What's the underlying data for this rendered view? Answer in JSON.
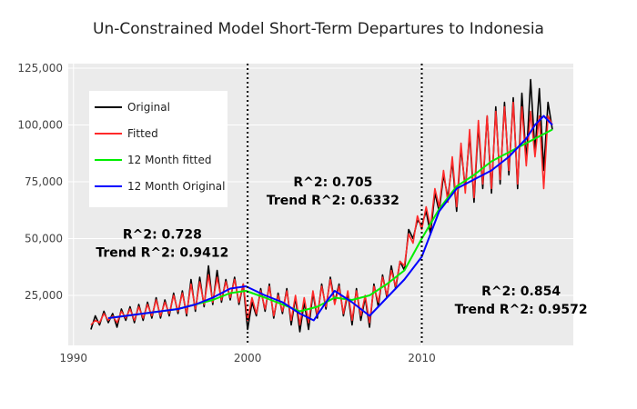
{
  "chart_data": {
    "type": "line",
    "title": "Un-Constrained Model Short-Term Departures to Indonesia",
    "xlabel": "",
    "ylabel": "",
    "xlim": [
      1989.7,
      2018.7
    ],
    "ylim": [
      3000,
      127000
    ],
    "x_ticks": [
      1990,
      2000,
      2010
    ],
    "x_tick_labels": [
      "1990",
      "2000",
      "2010"
    ],
    "y_ticks": [
      25000,
      50000,
      75000,
      100000,
      125000
    ],
    "y_tick_labels": [
      "25,000",
      "50,000",
      "75,000",
      "100,000",
      "125,000"
    ],
    "grid": true,
    "background": "#ebebeb",
    "legend_position": "upper-left inside",
    "breakpoints": [
      2000,
      2010
    ],
    "colors": {
      "Original": "#000000",
      "Fitted": "#ff2a2a",
      "12 Month fitted": "#00ee00",
      "12 Month Original": "#0000ff"
    },
    "series": [
      {
        "name": "Original",
        "x": [
          1991.0,
          1991.25,
          1991.5,
          1991.75,
          1992.0,
          1992.25,
          1992.5,
          1992.75,
          1993.0,
          1993.25,
          1993.5,
          1993.75,
          1994.0,
          1994.25,
          1994.5,
          1994.75,
          1995.0,
          1995.25,
          1995.5,
          1995.75,
          1996.0,
          1996.25,
          1996.5,
          1996.75,
          1997.0,
          1997.25,
          1997.5,
          1997.75,
          1998.0,
          1998.25,
          1998.5,
          1998.75,
          1999.0,
          1999.25,
          1999.5,
          1999.75,
          2000.0,
          2000.25,
          2000.5,
          2000.75,
          2001.0,
          2001.25,
          2001.5,
          2001.75,
          2002.0,
          2002.25,
          2002.5,
          2002.75,
          2003.0,
          2003.25,
          2003.5,
          2003.75,
          2004.0,
          2004.25,
          2004.5,
          2004.75,
          2005.0,
          2005.25,
          2005.5,
          2005.75,
          2006.0,
          2006.25,
          2006.5,
          2006.75,
          2007.0,
          2007.25,
          2007.5,
          2007.75,
          2008.0,
          2008.25,
          2008.5,
          2008.75,
          2009.0,
          2009.25,
          2009.5,
          2009.75,
          2010.0,
          2010.25,
          2010.5,
          2010.75,
          2011.0,
          2011.25,
          2011.5,
          2011.75,
          2012.0,
          2012.25,
          2012.5,
          2012.75,
          2013.0,
          2013.25,
          2013.5,
          2013.75,
          2014.0,
          2014.25,
          2014.5,
          2014.75,
          2015.0,
          2015.25,
          2015.5,
          2015.75,
          2016.0,
          2016.25,
          2016.5,
          2016.75,
          2017.0,
          2017.25,
          2017.5
        ],
        "y": [
          10000,
          16000,
          12000,
          18000,
          13000,
          17000,
          11000,
          19000,
          14000,
          20000,
          13000,
          21000,
          14000,
          22000,
          15000,
          24000,
          15000,
          23000,
          16000,
          26000,
          17000,
          27000,
          16000,
          32000,
          18000,
          33000,
          20000,
          38000,
          21000,
          36000,
          22000,
          32000,
          23000,
          33000,
          21000,
          30000,
          10000,
          22000,
          16000,
          28000,
          18000,
          30000,
          15000,
          26000,
          17000,
          28000,
          12000,
          24000,
          9000,
          22000,
          10000,
          26000,
          15000,
          30000,
          19000,
          33000,
          22000,
          30000,
          16000,
          26000,
          12000,
          28000,
          14000,
          24000,
          11000,
          30000,
          20000,
          34000,
          24000,
          38000,
          28000,
          40000,
          36000,
          54000,
          50000,
          58000,
          56000,
          62000,
          52000,
          70000,
          62000,
          78000,
          68000,
          84000,
          62000,
          90000,
          72000,
          96000,
          66000,
          100000,
          72000,
          104000,
          70000,
          108000,
          74000,
          110000,
          78000,
          112000,
          72000,
          114000,
          84000,
          120000,
          88000,
          116000,
          80000,
          110000,
          98000
        ]
      },
      {
        "name": "Fitted",
        "x": [
          1991.0,
          1991.25,
          1991.5,
          1991.75,
          1992.0,
          1992.25,
          1992.5,
          1992.75,
          1993.0,
          1993.25,
          1993.5,
          1993.75,
          1994.0,
          1994.25,
          1994.5,
          1994.75,
          1995.0,
          1995.25,
          1995.5,
          1995.75,
          1996.0,
          1996.25,
          1996.5,
          1996.75,
          1997.0,
          1997.25,
          1997.5,
          1997.75,
          1998.0,
          1998.25,
          1998.5,
          1998.75,
          1999.0,
          1999.25,
          1999.5,
          1999.75,
          2000.0,
          2000.25,
          2000.5,
          2000.75,
          2001.0,
          2001.25,
          2001.5,
          2001.75,
          2002.0,
          2002.25,
          2002.5,
          2002.75,
          2003.0,
          2003.25,
          2003.5,
          2003.75,
          2004.0,
          2004.25,
          2004.5,
          2004.75,
          2005.0,
          2005.25,
          2005.5,
          2005.75,
          2006.0,
          2006.25,
          2006.5,
          2006.75,
          2007.0,
          2007.25,
          2007.5,
          2007.75,
          2008.0,
          2008.25,
          2008.5,
          2008.75,
          2009.0,
          2009.25,
          2009.5,
          2009.75,
          2010.0,
          2010.25,
          2010.5,
          2010.75,
          2011.0,
          2011.25,
          2011.5,
          2011.75,
          2012.0,
          2012.25,
          2012.5,
          2012.75,
          2013.0,
          2013.25,
          2013.5,
          2013.75,
          2014.0,
          2014.25,
          2014.5,
          2014.75,
          2015.0,
          2015.25,
          2015.5,
          2015.75,
          2016.0,
          2016.25,
          2016.5,
          2016.75,
          2017.0,
          2017.25,
          2017.5
        ],
        "y": [
          12000,
          14000,
          13000,
          17000,
          14000,
          16000,
          13000,
          18000,
          15000,
          19000,
          14000,
          20000,
          15000,
          21000,
          16000,
          23000,
          16000,
          22000,
          17000,
          25000,
          18000,
          26000,
          17000,
          30000,
          19000,
          31000,
          21000,
          34000,
          22000,
          33000,
          23000,
          31000,
          24000,
          32000,
          22000,
          30000,
          14000,
          24000,
          17000,
          27000,
          19000,
          29000,
          16000,
          25000,
          18000,
          27000,
          14000,
          25000,
          12000,
          24000,
          13000,
          27000,
          16000,
          29000,
          20000,
          32000,
          21000,
          29000,
          17000,
          27000,
          14000,
          27000,
          16000,
          25000,
          13000,
          29000,
          22000,
          33000,
          25000,
          36000,
          29000,
          40000,
          38000,
          52000,
          48000,
          60000,
          54000,
          64000,
          55000,
          72000,
          64000,
          80000,
          66000,
          86000,
          64000,
          92000,
          70000,
          98000,
          68000,
          102000,
          74000,
          104000,
          72000,
          106000,
          76000,
          108000,
          80000,
          110000,
          74000,
          108000,
          82000,
          106000,
          86000,
          104000,
          72000,
          104000,
          100000
        ]
      },
      {
        "name": "12 Month fitted",
        "x": [
          1992.0,
          1993.0,
          1994.0,
          1995.0,
          1996.0,
          1997.0,
          1998.0,
          1999.0,
          1999.9,
          2001.0,
          2002.0,
          2003.0,
          2004.0,
          2005.0,
          2006.0,
          2007.0,
          2008.0,
          2009.0,
          2010.0,
          2011.0,
          2012.0,
          2013.0,
          2014.0,
          2015.0,
          2016.0,
          2017.0,
          2017.5
        ],
        "y": [
          15000,
          16000,
          17000,
          18000,
          19000,
          21000,
          23000,
          26000,
          27000,
          24000,
          21000,
          18000,
          20000,
          24000,
          23000,
          25000,
          30000,
          36000,
          50000,
          63000,
          73000,
          78000,
          84000,
          88000,
          92000,
          96000,
          98000
        ]
      },
      {
        "name": "12 Month Original",
        "x": [
          1992.0,
          1993.0,
          1994.0,
          1995.0,
          1996.0,
          1997.0,
          1998.0,
          1999.0,
          1999.9,
          2001.0,
          2002.0,
          2003.0,
          2003.8,
          2004.5,
          2005.0,
          2006.0,
          2007.0,
          2008.0,
          2009.0,
          2010.0,
          2011.0,
          2012.0,
          2013.0,
          2014.0,
          2015.0,
          2016.0,
          2016.5,
          2017.0,
          2017.5
        ],
        "y": [
          15000,
          16000,
          17000,
          18000,
          19000,
          21000,
          24000,
          28000,
          29000,
          25000,
          22000,
          17000,
          14000,
          22000,
          27000,
          22000,
          16000,
          24000,
          32000,
          42000,
          62000,
          72000,
          76000,
          80000,
          86000,
          94000,
          100000,
          104000,
          100000
        ]
      }
    ],
    "annotations": [
      {
        "lines": [
          "R^2: 0.728",
          "Trend R^2: 0.9412"
        ],
        "x": 1995.1,
        "y": 50000
      },
      {
        "lines": [
          "R^2: 0.705",
          "Trend R^2: 0.6332"
        ],
        "x": 2004.9,
        "y": 73000
      },
      {
        "lines": [
          "R^2: 0.854",
          "Trend R^2: 0.9572"
        ],
        "x": 2015.7,
        "y": 25000
      }
    ]
  }
}
